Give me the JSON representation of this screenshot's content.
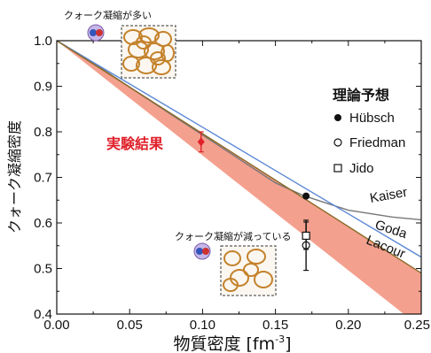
{
  "chart_data": {
    "type": "line",
    "title": "",
    "xlabel": "物質密度 [fm",
    "xlabel_sup": "-3",
    "xlabel_end": "]",
    "ylabel": "クォーク凝縮密度",
    "xlim": [
      0.0,
      0.25
    ],
    "ylim": [
      0.4,
      1.0
    ],
    "x_ticks": [
      0.0,
      0.05,
      0.1,
      0.15,
      0.2,
      0.25
    ],
    "x_tick_labels": [
      "0.00",
      "0.05",
      "0.10",
      "0.15",
      "0.20",
      "0.25"
    ],
    "y_ticks": [
      0.4,
      0.5,
      0.6,
      0.7,
      0.8,
      0.9,
      1.0
    ],
    "y_tick_labels": [
      "0.4",
      "0.5",
      "0.6",
      "0.7",
      "0.8",
      "0.9",
      "1.0"
    ],
    "band": {
      "color": "#f4a08e",
      "x": [
        0.0,
        0.25
      ],
      "lower": [
        1.0,
        0.37
      ],
      "upper": [
        1.0,
        0.49
      ]
    },
    "series": [
      {
        "name": "Kaiser",
        "color": "#777777",
        "x": [
          0.0,
          0.02,
          0.05,
          0.08,
          0.1,
          0.12,
          0.15,
          0.17,
          0.2,
          0.23,
          0.25
        ],
        "y": [
          1.0,
          0.962,
          0.898,
          0.835,
          0.793,
          0.751,
          0.688,
          0.659,
          0.628,
          0.613,
          0.607
        ]
      },
      {
        "name": "Goda",
        "color": "#5b88d6",
        "x": [
          0.0,
          0.05,
          0.1,
          0.15,
          0.2,
          0.25
        ],
        "y": [
          1.0,
          0.905,
          0.81,
          0.715,
          0.62,
          0.525
        ]
      },
      {
        "name": "Lacour",
        "color": "#8a6a28",
        "x": [
          0.0,
          0.05,
          0.1,
          0.15,
          0.2,
          0.25
        ],
        "y": [
          1.0,
          0.898,
          0.796,
          0.694,
          0.592,
          0.49
        ]
      }
    ],
    "points": [
      {
        "name": "実験結果",
        "marker": "diamond",
        "color": "#e0202a",
        "x": 0.099,
        "y": 0.778,
        "yerr": 0.022,
        "label_color": "#e0202a"
      },
      {
        "name": "Hübsch",
        "marker": "filled-circle",
        "color": "#111111",
        "x": 0.171,
        "y": 0.659,
        "yerr": 0.0
      },
      {
        "name": "Friedman",
        "marker": "open-circle",
        "color": "#111111",
        "x": 0.171,
        "y": 0.551,
        "yerr": 0.055
      },
      {
        "name": "Jido",
        "marker": "open-square",
        "color": "#111111",
        "x": 0.171,
        "y": 0.572,
        "yerr": 0.03
      }
    ],
    "legend": {
      "title": "理論予想",
      "placement": "right",
      "entries": [
        "Hübsch",
        "Friedman",
        "Jido"
      ]
    },
    "curve_labels": [
      "Kaiser",
      "Goda",
      "Lacour"
    ],
    "experiment_label": "実験結果",
    "annotations": [
      "クォーク凝縮が多い",
      "クォーク凝縮が減っている"
    ],
    "grid": false
  }
}
